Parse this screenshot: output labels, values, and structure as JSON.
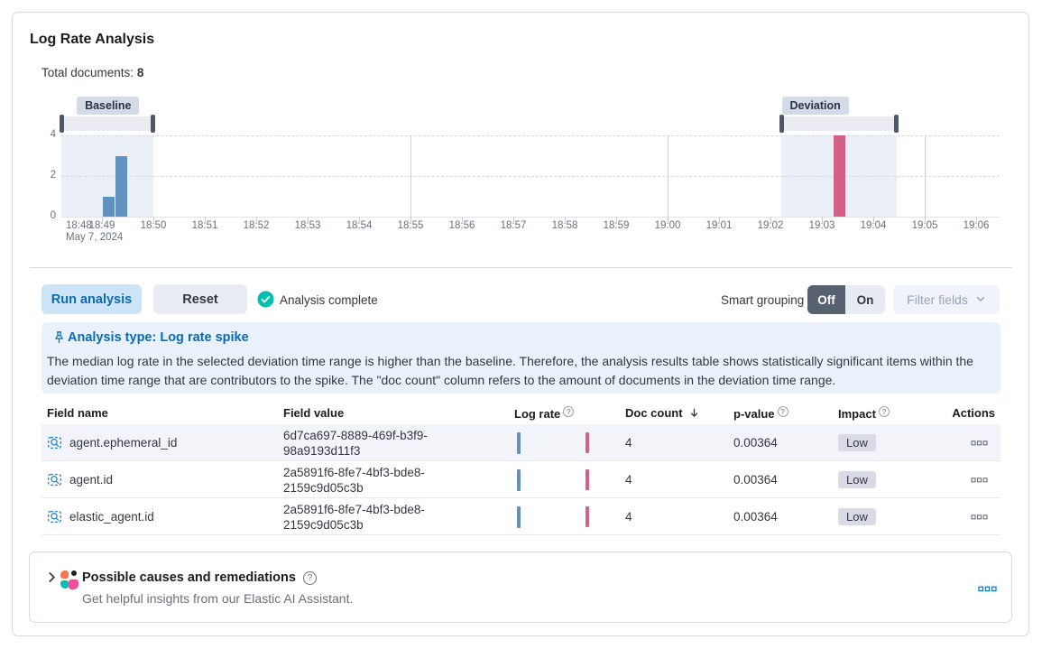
{
  "app": {
    "title": "Log Rate Analysis"
  },
  "summary": {
    "label": "Total documents:",
    "value": "8"
  },
  "chart_data": {
    "type": "bar",
    "title": "Document count histogram with baseline and deviation windows",
    "ylim": [
      0,
      4
    ],
    "y_ticks": [
      0,
      2,
      4
    ],
    "x_ticks": [
      "18:48",
      "18:49",
      "18:50",
      "18:51",
      "18:52",
      "18:53",
      "18:54",
      "18:55",
      "18:56",
      "18:57",
      "18:58",
      "18:59",
      "19:00",
      "19:01",
      "19:02",
      "19:03",
      "19:04",
      "19:05",
      "19:06"
    ],
    "x_first_tick_sublabel": "May 7, 2024",
    "major_grid_tick_indexes": [
      7,
      12,
      17
    ],
    "bar_width_min": 0.23,
    "windows": [
      {
        "name": "baseline",
        "label": "Baseline",
        "start_min": 0.21,
        "end_min": 2.0,
        "badge_at_min": 0.51
      },
      {
        "name": "deviation",
        "label": "Deviation",
        "start_min": 14.21,
        "end_min": 16.46,
        "badge_at_min": 14.22
      }
    ],
    "series": [
      {
        "name": "baseline",
        "color": "#6092c0",
        "bars": [
          {
            "t_min": 1.02,
            "value": 1
          },
          {
            "t_min": 1.26,
            "value": 3
          }
        ]
      },
      {
        "name": "deviation",
        "color": "#d36086",
        "bars": [
          {
            "t_min": 15.23,
            "value": 4
          }
        ]
      }
    ]
  },
  "controls": {
    "run_button": "Run analysis",
    "reset_button": "Reset",
    "status": "Analysis complete",
    "smart_grouping_label": "Smart grouping",
    "toggle_off": "Off",
    "toggle_on": "On",
    "filter_fields_button": "Filter fields"
  },
  "callout": {
    "title": "Analysis type: Log rate spike",
    "body": "The median log rate in the selected deviation time range is higher than the baseline. Therefore, the analysis results table shows statistically significant items within the deviation time range that are contributors to the spike. The \"doc count\" column refers to the amount of documents in the deviation time range."
  },
  "table": {
    "columns": [
      {
        "key": "field_name",
        "label": "Field name"
      },
      {
        "key": "field_value",
        "label": "Field value"
      },
      {
        "key": "log_rate",
        "label": "Log rate",
        "info": true
      },
      {
        "key": "doc_count",
        "label": "Doc count",
        "sort": "desc"
      },
      {
        "key": "p_value",
        "label": "p-value",
        "info": true
      },
      {
        "key": "impact",
        "label": "Impact",
        "info": true
      },
      {
        "key": "actions",
        "label": "Actions",
        "align": "right"
      }
    ],
    "rows": [
      {
        "field_name": "agent.ephemeral_id",
        "field_value": "6d7ca697-8889-469f-b3f9-98a9193d11f3",
        "doc_count": "4",
        "p_value": "0.00364",
        "impact": "Low",
        "highlighted": true,
        "sparkline": {
          "baseline_rel": 1,
          "deviation_rel": 0.96
        }
      },
      {
        "field_name": "agent.id",
        "field_value": "2a5891f6-8fe7-4bf3-bde8-2159c9d05c3b",
        "doc_count": "4",
        "p_value": "0.00364",
        "impact": "Low",
        "highlighted": false,
        "sparkline": {
          "baseline_rel": 1,
          "deviation_rel": 0.96
        }
      },
      {
        "field_name": "elastic_agent.id",
        "field_value": "2a5891f6-8fe7-4bf3-bde8-2159c9d05c3b",
        "doc_count": "4",
        "p_value": "0.00364",
        "impact": "Low",
        "highlighted": false,
        "sparkline": {
          "baseline_rel": 1,
          "deviation_rel": 0.96
        }
      }
    ]
  },
  "footer_panel": {
    "title": "Possible causes and remediations",
    "subtitle": "Get helpful insights from our Elastic AI Assistant."
  },
  "icons": {
    "field_stats": "field-stats-icon",
    "check": "check-circle-icon",
    "pin": "pin-icon",
    "info": "info-icon",
    "sort_desc": "sort-desc-icon",
    "actions": "boxes-horizontal-icon",
    "chevron_down": "chevron-down-icon",
    "chevron_right": "chevron-right-icon",
    "ai_assistant": "ai-assistant-icon",
    "help": "help-icon"
  },
  "colors": {
    "baseline_bar": "#6092c0",
    "deviation_bar": "#d36086",
    "primary": "#0a6bb3",
    "success": "#00bfb3",
    "panel_border": "#d3dae6"
  }
}
